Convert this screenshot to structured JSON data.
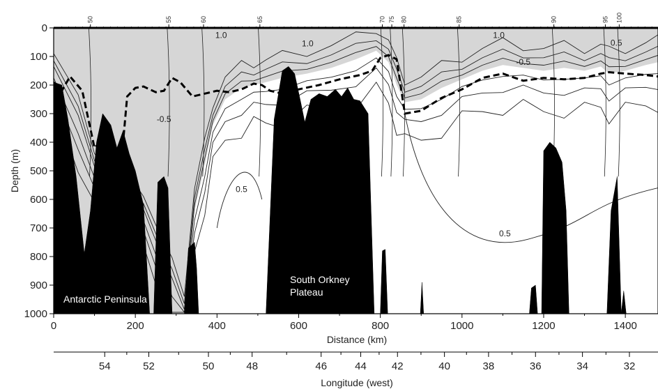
{
  "chart_data": {
    "type": "contour",
    "xlabel": "Distance (km)",
    "ylabel": "Depth (m)",
    "secondary_xlabel": "Longitude (west)",
    "xlim": [
      0,
      1480
    ],
    "ylim": [
      0,
      1000
    ],
    "y_inverted": true,
    "x_ticks": [
      0,
      200,
      400,
      600,
      800,
      1000,
      1200,
      1400
    ],
    "y_ticks": [
      0,
      100,
      200,
      300,
      400,
      500,
      600,
      700,
      800,
      900,
      1000
    ],
    "longitude_ticks": [
      {
        "label": "54",
        "distance": 125
      },
      {
        "label": "52",
        "distance": 233
      },
      {
        "label": "50",
        "distance": 379
      },
      {
        "label": "48",
        "distance": 486
      },
      {
        "label": "46",
        "distance": 655
      },
      {
        "label": "44",
        "distance": 752
      },
      {
        "label": "42",
        "distance": 842
      },
      {
        "label": "40",
        "distance": 957
      },
      {
        "label": "38",
        "distance": 1065
      },
      {
        "label": "36",
        "distance": 1180
      },
      {
        "label": "34",
        "distance": 1295
      },
      {
        "label": "32",
        "distance": 1410
      }
    ],
    "stations": [
      {
        "label": "50",
        "distance": 90
      },
      {
        "label": "55",
        "distance": 282
      },
      {
        "label": "60",
        "distance": 367
      },
      {
        "label": "65",
        "distance": 505
      },
      {
        "label": "70",
        "distance": 805
      },
      {
        "label": "75",
        "distance": 828
      },
      {
        "label": "80",
        "distance": 858
      },
      {
        "label": "85",
        "distance": 993
      },
      {
        "label": "90",
        "distance": 1225
      },
      {
        "label": "95",
        "distance": 1351
      },
      {
        "label": "100",
        "distance": 1385
      }
    ],
    "contour_labels": [
      {
        "text": "1.0",
        "x": 410,
        "y": 25
      },
      {
        "text": "1.0",
        "x": 622,
        "y": 55
      },
      {
        "text": "1.0",
        "x": 1090,
        "y": 25
      },
      {
        "text": "0.5",
        "x": 1378,
        "y": 52
      },
      {
        "text": "-0.5",
        "x": 1150,
        "y": 120
      },
      {
        "text": "-0.5",
        "x": 270,
        "y": 320
      },
      {
        "text": "0.5",
        "x": 460,
        "y": 565
      },
      {
        "text": "0.5",
        "x": 1105,
        "y": 720
      }
    ],
    "annotations": [
      "Antarctic Peninsula",
      "South Orkney Plateau"
    ],
    "dashed_line": {
      "x": [
        0,
        20,
        40,
        70,
        100,
        120,
        140,
        160,
        180,
        200,
        220,
        250,
        270,
        290,
        310,
        340,
        370,
        400,
        430,
        460,
        490,
        510,
        530,
        560,
        600,
        650,
        700,
        750,
        780,
        800,
        820,
        840,
        860,
        900,
        950,
        1000,
        1050,
        1100,
        1150,
        1200,
        1250,
        1300,
        1340,
        1360,
        1400,
        1450,
        1480
      ],
      "y": [
        190,
        220,
        170,
        220,
        420,
        390,
        370,
        560,
        240,
        210,
        205,
        225,
        220,
        175,
        190,
        240,
        230,
        220,
        225,
        215,
        195,
        200,
        220,
        230,
        215,
        200,
        180,
        165,
        150,
        105,
        95,
        110,
        300,
        290,
        245,
        215,
        175,
        160,
        185,
        175,
        180,
        175,
        160,
        155,
        160,
        165,
        170
      ]
    },
    "bathymetry": [
      {
        "name": "Antarctic Peninsula",
        "x": [
          0,
          20,
          35,
          55,
          75,
          90,
          105,
          120,
          140,
          155,
          170,
          185,
          200,
          220,
          235
        ],
        "y": [
          190,
          200,
          320,
          520,
          790,
          640,
          400,
          300,
          340,
          420,
          360,
          440,
          500,
          620,
          1000
        ]
      },
      {
        "name": "ridge-260",
        "x": [
          245,
          255,
          270,
          280,
          290
        ],
        "y": [
          1000,
          540,
          520,
          560,
          1000
        ]
      },
      {
        "name": "ridge-320",
        "x": [
          320,
          330,
          345,
          350,
          355
        ],
        "y": [
          1000,
          770,
          750,
          840,
          1000
        ]
      },
      {
        "name": "South Orkney Plateau",
        "x": [
          520,
          540,
          560,
          575,
          590,
          605,
          615,
          630,
          650,
          670,
          690,
          705,
          720,
          735,
          750,
          770,
          785
        ],
        "y": [
          1000,
          320,
          150,
          135,
          160,
          260,
          330,
          250,
          230,
          240,
          215,
          240,
          210,
          250,
          255,
          300,
          1000
        ]
      },
      {
        "name": "ridge-810",
        "x": [
          800,
          805,
          812,
          818
        ],
        "y": [
          1000,
          780,
          775,
          1000
        ]
      },
      {
        "name": "ridge-905",
        "x": [
          898,
          902,
          906
        ],
        "y": [
          1000,
          890,
          1000
        ]
      },
      {
        "name": "ridge-1175",
        "x": [
          1165,
          1170,
          1180,
          1185
        ],
        "y": [
          1000,
          910,
          900,
          1000
        ]
      },
      {
        "name": "ridge-1225",
        "x": [
          1195,
          1200,
          1215,
          1230,
          1245,
          1255,
          1262
        ],
        "y": [
          1000,
          430,
          400,
          420,
          470,
          640,
          1000
        ]
      },
      {
        "name": "ridge-1365",
        "x": [
          1355,
          1365,
          1380,
          1390
        ],
        "y": [
          1000,
          640,
          520,
          1000
        ]
      },
      {
        "name": "ridge-1395",
        "x": [
          1390,
          1396,
          1402
        ],
        "y": [
          1000,
          920,
          1000
        ]
      }
    ],
    "shaded_region_boundary": {
      "x": [
        0,
        30,
        60,
        100,
        140,
        180,
        220,
        260,
        290,
        320,
        345,
        370,
        390,
        420,
        460,
        490,
        520,
        560,
        620,
        680,
        740,
        790,
        820,
        840,
        860,
        900,
        950,
        1000,
        1050,
        1100,
        1150,
        1200,
        1250,
        1300,
        1340,
        1360,
        1400,
        1450,
        1480
      ],
      "y": [
        150,
        240,
        330,
        500,
        580,
        600,
        650,
        800,
        900,
        1000,
        640,
        480,
        340,
        250,
        210,
        200,
        190,
        175,
        160,
        140,
        110,
        80,
        120,
        200,
        260,
        250,
        210,
        180,
        150,
        130,
        140,
        150,
        140,
        150,
        135,
        160,
        150,
        130,
        120
      ]
    }
  }
}
